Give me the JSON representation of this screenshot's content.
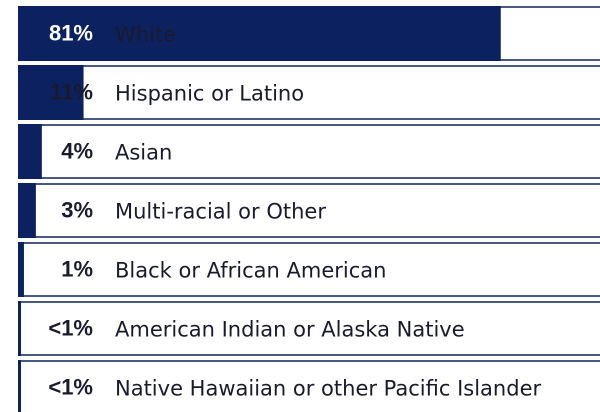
{
  "chart_data": {
    "type": "bar",
    "orientation": "horizontal",
    "categories": [
      "White",
      "Hispanic or Latino",
      "Asian",
      "Multi-racial or Other",
      "Black or African American",
      "American Indian or Alaska Native",
      "Native Hawaiian or other Pacific Islander"
    ],
    "values": [
      81,
      11,
      4,
      3,
      1,
      0.5,
      0.5
    ],
    "value_labels": [
      "81%",
      "11%",
      "4%",
      "3%",
      "1%",
      "<1%",
      "<1%"
    ],
    "color": "#0c2260",
    "xlim": [
      0,
      100
    ]
  }
}
